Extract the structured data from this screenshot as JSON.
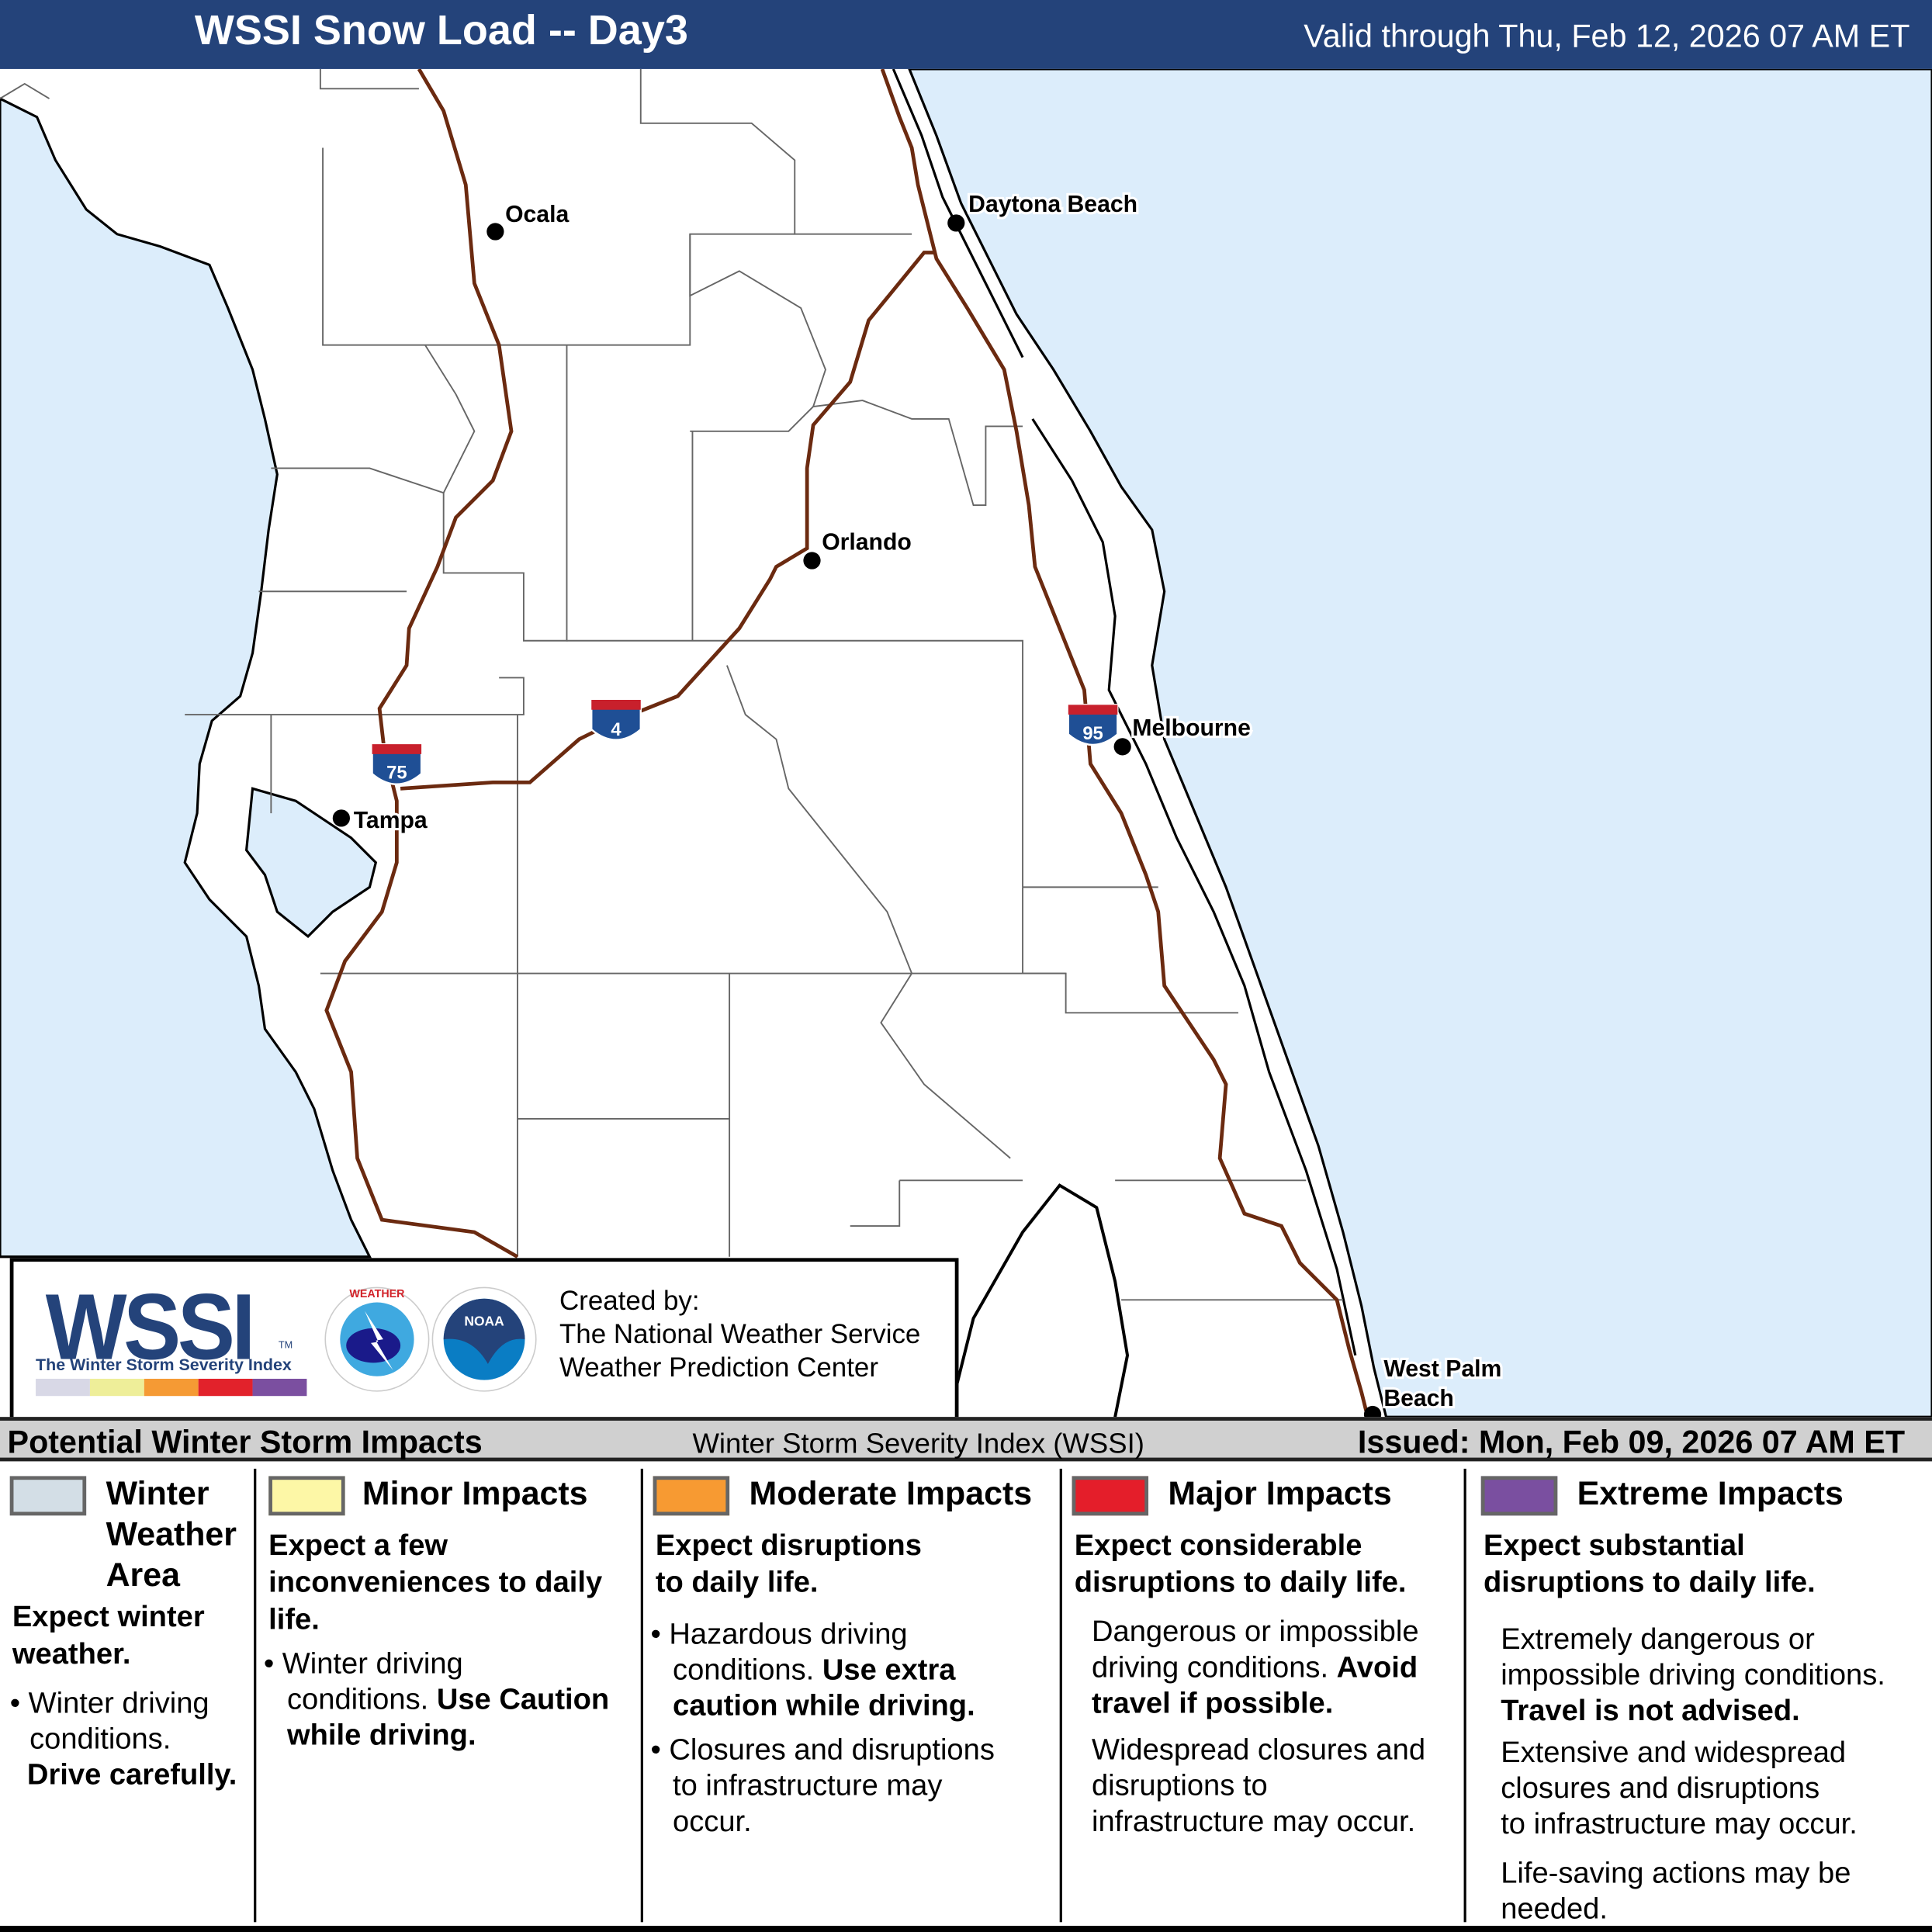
{
  "header": {
    "title": "WSSI Snow Load -- Day3",
    "valid": "Valid through Thu, Feb 12, 2026 07 AM ET",
    "background": "#24437a"
  },
  "map": {
    "ocean_color": "#dcedfb",
    "interstate_color": "#6b2a10",
    "cities": [
      {
        "name": "Ocala"
      },
      {
        "name": "Daytona Beach"
      },
      {
        "name": "Orlando"
      },
      {
        "name": "Melbourne"
      },
      {
        "name": "Tampa"
      },
      {
        "name": "West Palm"
      },
      {
        "name": "Beach"
      }
    ],
    "interstates": [
      "75",
      "4",
      "95"
    ]
  },
  "logo": {
    "wssi": "WSSI",
    "tm": "TM",
    "subtitle": "The Winter Storm Severity Index",
    "swatch_colors": [
      "#d8d8e6",
      "#eeee99",
      "#f59a34",
      "#e2222b",
      "#7b4fa0"
    ],
    "nws_text": "NATIONAL WEATHER SERVICE",
    "noaa_text": "NOAA",
    "created_by": "Created by:",
    "org1": "The National Weather Service",
    "org2": "Weather Prediction Center"
  },
  "impacts": {
    "title": "Potential Winter Storm Impacts",
    "subtitle": "Winter Storm Severity Index (WSSI)",
    "issued": "Issued: Mon, Feb 09, 2026 07 AM ET",
    "categories": [
      {
        "color": "#d3dee6",
        "name1": "Winter",
        "name2": "Weather",
        "name3": "Area",
        "lead1": "Expect winter",
        "lead2": "weather.",
        "b1": "Winter driving",
        "b2": "conditions.",
        "b3": "Drive carefully."
      },
      {
        "color": "#fdf7a6",
        "name": "Minor Impacts",
        "lead1": "Expect a few",
        "lead2": "inconveniences to daily",
        "lead3": "life.",
        "b1": "Winter driving",
        "b2": "conditions.",
        "b2b": "Use Caution",
        "b3": "while driving."
      },
      {
        "color": "#f79a32",
        "name": "Moderate Impacts",
        "lead1": "Expect disruptions",
        "lead2": "to daily life.",
        "b1": "Hazardous driving",
        "b2": "conditions.",
        "b2b": "Use extra",
        "b3": "caution while driving.",
        "c1": "Closures and disruptions",
        "c2": "to infrastructure may",
        "c3": "occur."
      },
      {
        "color": "#e41e2a",
        "name": "Major Impacts",
        "lead1": "Expect considerable",
        "lead2": "disruptions to daily life.",
        "b1": "Dangerous or impossible",
        "b2": "driving conditions.",
        "b2b": "Avoid",
        "b3": "travel if possible.",
        "c1": "Widespread closures and",
        "c2": "disruptions to",
        "c3": "infrastructure may occur."
      },
      {
        "color": "#7a4fa0",
        "name": "Extreme Impacts",
        "lead1": "Expect substantial",
        "lead2": "disruptions to daily life.",
        "b1": "Extremely dangerous or",
        "b2": "impossible driving conditions.",
        "b3": "Travel is not advised.",
        "c1": "Extensive and widespread",
        "c2": "closures and disruptions",
        "c3": "to infrastructure may occur.",
        "d1": "Life-saving actions may be",
        "d2": "needed."
      }
    ]
  }
}
